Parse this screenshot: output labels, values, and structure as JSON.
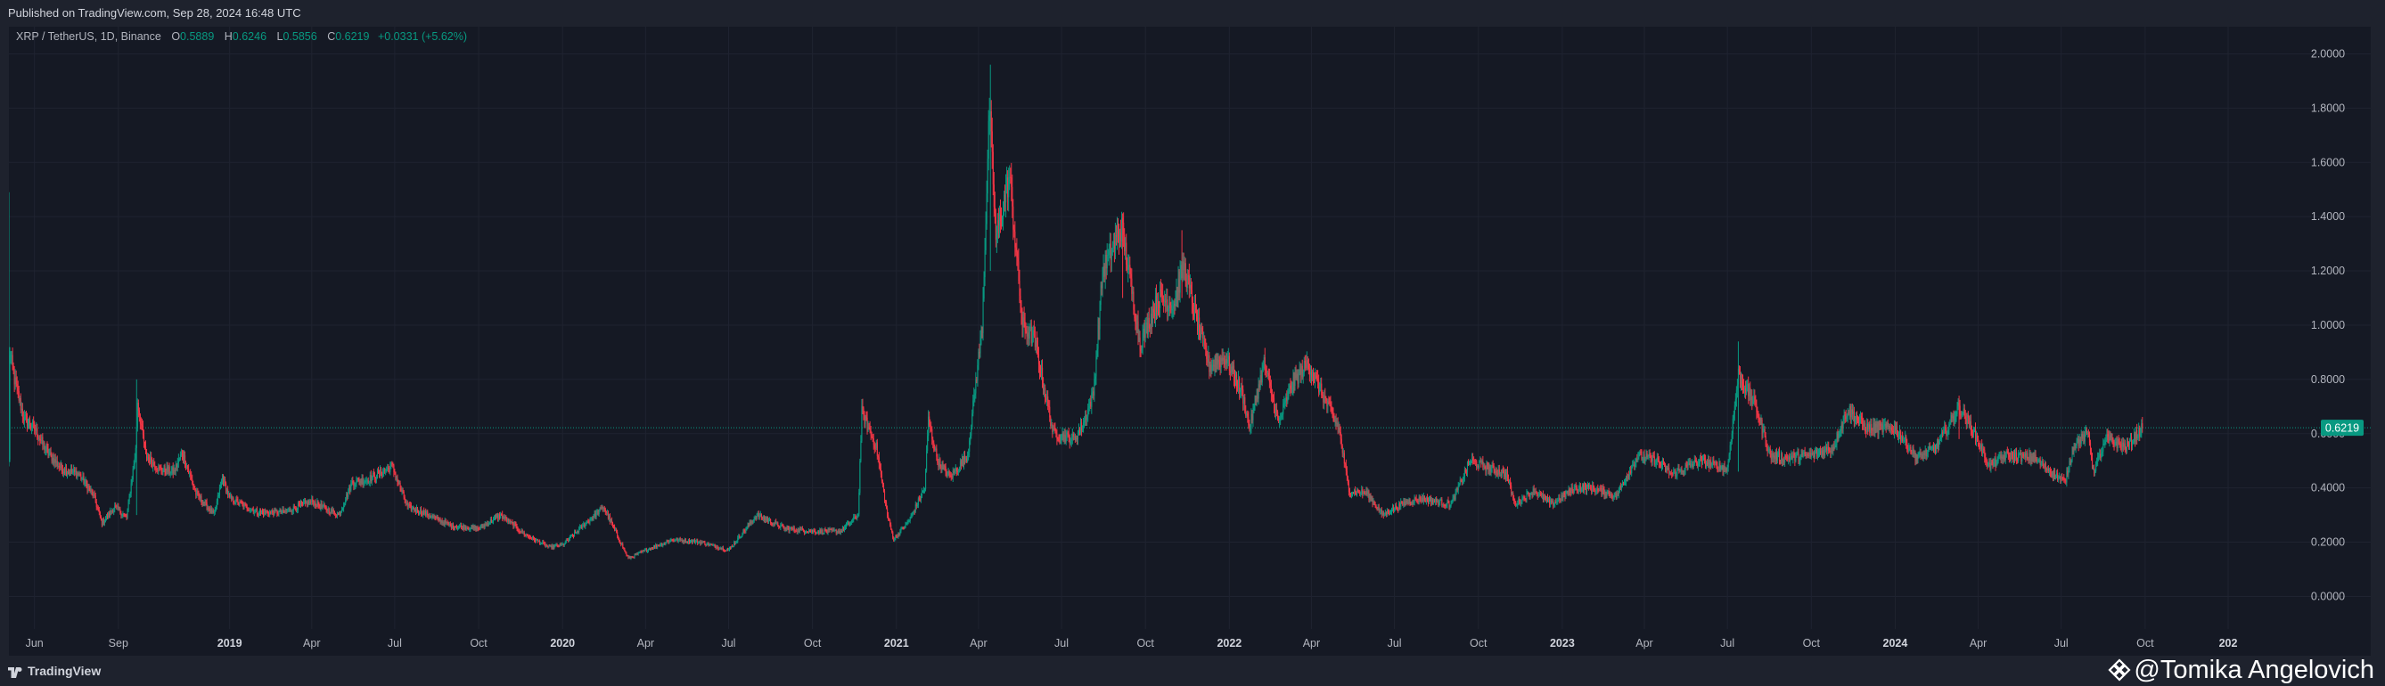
{
  "header": {
    "published": "Published on TradingView.com, Sep 28, 2024 16:48 UTC"
  },
  "legend": {
    "symbol": "XRP / TetherUS, 1D, Binance",
    "open_label": "O",
    "open": "0.5889",
    "high_label": "H",
    "high": "0.6246",
    "low_label": "L",
    "low": "0.5856",
    "close_label": "C",
    "close": "0.6219",
    "change": "+0.0331 (+5.62%)"
  },
  "footer": {
    "brand": "TradingView",
    "watermark": "@Tomika Angelovich"
  },
  "colors": {
    "up": "#089981",
    "down": "#f23645",
    "background": "#151924",
    "frame": "#1e222d",
    "grid": "#1f2330",
    "price_tag": "#089981"
  },
  "chart_data": {
    "type": "candlestick",
    "title": "XRP / TetherUS, 1D, Binance",
    "interval": "1D",
    "grid": true,
    "y_axis_position": "right",
    "ylim": [
      -0.12,
      2.1
    ],
    "y_ticks": [
      0.0,
      0.2,
      0.4,
      0.6,
      0.8,
      1.0,
      1.2,
      1.4,
      1.6,
      1.8,
      2.0
    ],
    "y_tick_labels": [
      "0.0000",
      "0.2000",
      "0.4000",
      "0.6000",
      "0.8000",
      "1.0000",
      "1.2000",
      "1.4000",
      "1.6000",
      "1.8000",
      "2.0000"
    ],
    "x_start": "2018-05-04",
    "x_end": "2024-12-31",
    "x_ticks": [
      {
        "date": "2018-06-01",
        "label": "Jun",
        "major": false
      },
      {
        "date": "2018-09-01",
        "label": "Sep",
        "major": false
      },
      {
        "date": "2019-01-01",
        "label": "2019",
        "major": true
      },
      {
        "date": "2019-04-01",
        "label": "Apr",
        "major": false
      },
      {
        "date": "2019-07-01",
        "label": "Jul",
        "major": false
      },
      {
        "date": "2019-10-01",
        "label": "Oct",
        "major": false
      },
      {
        "date": "2020-01-01",
        "label": "2020",
        "major": true
      },
      {
        "date": "2020-04-01",
        "label": "Apr",
        "major": false
      },
      {
        "date": "2020-07-01",
        "label": "Jul",
        "major": false
      },
      {
        "date": "2020-10-01",
        "label": "Oct",
        "major": false
      },
      {
        "date": "2021-01-01",
        "label": "2021",
        "major": true
      },
      {
        "date": "2021-04-01",
        "label": "Apr",
        "major": false
      },
      {
        "date": "2021-07-01",
        "label": "Jul",
        "major": false
      },
      {
        "date": "2021-10-01",
        "label": "Oct",
        "major": false
      },
      {
        "date": "2022-01-01",
        "label": "2022",
        "major": true
      },
      {
        "date": "2022-04-01",
        "label": "Apr",
        "major": false
      },
      {
        "date": "2022-07-01",
        "label": "Jul",
        "major": false
      },
      {
        "date": "2022-10-01",
        "label": "Oct",
        "major": false
      },
      {
        "date": "2023-01-01",
        "label": "2023",
        "major": true
      },
      {
        "date": "2023-04-01",
        "label": "Apr",
        "major": false
      },
      {
        "date": "2023-07-01",
        "label": "Jul",
        "major": false
      },
      {
        "date": "2023-10-01",
        "label": "Oct",
        "major": false
      },
      {
        "date": "2024-01-01",
        "label": "2024",
        "major": true
      },
      {
        "date": "2024-04-01",
        "label": "Apr",
        "major": false
      },
      {
        "date": "2024-07-01",
        "label": "Jul",
        "major": false
      },
      {
        "date": "2024-10-01",
        "label": "Oct",
        "major": false
      },
      {
        "date": "2024-12-31",
        "label": "202",
        "major": true
      }
    ],
    "last_price": 0.6219,
    "last_price_label": "0.6219",
    "close_path": [
      [
        "2018-05-04",
        0.5
      ],
      [
        "2018-05-05",
        0.9
      ],
      [
        "2018-05-10",
        0.8
      ],
      [
        "2018-05-20",
        0.66
      ],
      [
        "2018-06-01",
        0.62
      ],
      [
        "2018-06-15",
        0.53
      ],
      [
        "2018-07-01",
        0.47
      ],
      [
        "2018-07-20",
        0.45
      ],
      [
        "2018-08-05",
        0.37
      ],
      [
        "2018-08-14",
        0.27
      ],
      [
        "2018-08-28",
        0.33
      ],
      [
        "2018-09-10",
        0.29
      ],
      [
        "2018-09-20",
        0.54
      ],
      [
        "2018-09-22",
        0.72
      ],
      [
        "2018-10-01",
        0.52
      ],
      [
        "2018-10-15",
        0.47
      ],
      [
        "2018-11-01",
        0.46
      ],
      [
        "2018-11-10",
        0.53
      ],
      [
        "2018-11-25",
        0.38
      ],
      [
        "2018-12-15",
        0.3
      ],
      [
        "2018-12-24",
        0.44
      ],
      [
        "2019-01-01",
        0.36
      ],
      [
        "2019-02-01",
        0.31
      ],
      [
        "2019-03-01",
        0.31
      ],
      [
        "2019-04-01",
        0.35
      ],
      [
        "2019-05-01",
        0.3
      ],
      [
        "2019-05-15",
        0.42
      ],
      [
        "2019-06-01",
        0.43
      ],
      [
        "2019-06-28",
        0.48
      ],
      [
        "2019-07-15",
        0.33
      ],
      [
        "2019-08-01",
        0.31
      ],
      [
        "2019-09-01",
        0.26
      ],
      [
        "2019-10-01",
        0.25
      ],
      [
        "2019-10-25",
        0.3
      ],
      [
        "2019-11-20",
        0.23
      ],
      [
        "2019-12-18",
        0.18
      ],
      [
        "2020-01-01",
        0.19
      ],
      [
        "2020-02-15",
        0.33
      ],
      [
        "2020-03-13",
        0.14
      ],
      [
        "2020-04-01",
        0.17
      ],
      [
        "2020-05-01",
        0.21
      ],
      [
        "2020-06-01",
        0.2
      ],
      [
        "2020-07-01",
        0.17
      ],
      [
        "2020-08-01",
        0.3
      ],
      [
        "2020-09-01",
        0.25
      ],
      [
        "2020-10-01",
        0.24
      ],
      [
        "2020-11-01",
        0.24
      ],
      [
        "2020-11-20",
        0.3
      ],
      [
        "2020-11-24",
        0.68
      ],
      [
        "2020-12-10",
        0.55
      ],
      [
        "2020-12-22",
        0.3
      ],
      [
        "2020-12-29",
        0.21
      ],
      [
        "2021-01-15",
        0.28
      ],
      [
        "2021-02-01",
        0.4
      ],
      [
        "2021-02-05",
        0.65
      ],
      [
        "2021-02-15",
        0.5
      ],
      [
        "2021-03-01",
        0.44
      ],
      [
        "2021-03-20",
        0.52
      ],
      [
        "2021-04-05",
        1.0
      ],
      [
        "2021-04-13",
        1.8
      ],
      [
        "2021-04-20",
        1.32
      ],
      [
        "2021-05-05",
        1.55
      ],
      [
        "2021-05-19",
        1.0
      ],
      [
        "2021-06-01",
        0.95
      ],
      [
        "2021-06-22",
        0.6
      ],
      [
        "2021-07-15",
        0.58
      ],
      [
        "2021-07-25",
        0.64
      ],
      [
        "2021-08-05",
        0.75
      ],
      [
        "2021-08-15",
        1.2
      ],
      [
        "2021-09-05",
        1.36
      ],
      [
        "2021-09-25",
        0.93
      ],
      [
        "2021-10-15",
        1.1
      ],
      [
        "2021-11-01",
        1.08
      ],
      [
        "2021-11-12",
        1.22
      ],
      [
        "2021-11-25",
        1.03
      ],
      [
        "2021-12-10",
        0.85
      ],
      [
        "2021-12-28",
        0.88
      ],
      [
        "2022-01-15",
        0.75
      ],
      [
        "2022-01-23",
        0.62
      ],
      [
        "2022-02-08",
        0.86
      ],
      [
        "2022-02-24",
        0.64
      ],
      [
        "2022-03-10",
        0.78
      ],
      [
        "2022-03-28",
        0.86
      ],
      [
        "2022-04-15",
        0.73
      ],
      [
        "2022-05-01",
        0.62
      ],
      [
        "2022-05-12",
        0.39
      ],
      [
        "2022-06-01",
        0.38
      ],
      [
        "2022-06-18",
        0.3
      ],
      [
        "2022-07-15",
        0.35
      ],
      [
        "2022-08-01",
        0.36
      ],
      [
        "2022-09-01",
        0.34
      ],
      [
        "2022-09-22",
        0.5
      ],
      [
        "2022-10-15",
        0.47
      ],
      [
        "2022-11-01",
        0.45
      ],
      [
        "2022-11-10",
        0.34
      ],
      [
        "2022-12-01",
        0.39
      ],
      [
        "2022-12-20",
        0.34
      ],
      [
        "2023-01-15",
        0.4
      ],
      [
        "2023-02-01",
        0.4
      ],
      [
        "2023-03-01",
        0.37
      ],
      [
        "2023-03-25",
        0.52
      ],
      [
        "2023-04-15",
        0.5
      ],
      [
        "2023-05-01",
        0.45
      ],
      [
        "2023-06-01",
        0.5
      ],
      [
        "2023-07-01",
        0.47
      ],
      [
        "2023-07-13",
        0.82
      ],
      [
        "2023-08-01",
        0.7
      ],
      [
        "2023-08-17",
        0.52
      ],
      [
        "2023-09-01",
        0.51
      ],
      [
        "2023-10-01",
        0.52
      ],
      [
        "2023-10-25",
        0.55
      ],
      [
        "2023-11-10",
        0.69
      ],
      [
        "2023-12-01",
        0.62
      ],
      [
        "2024-01-01",
        0.62
      ],
      [
        "2024-01-25",
        0.51
      ],
      [
        "2024-02-15",
        0.55
      ],
      [
        "2024-03-11",
        0.7
      ],
      [
        "2024-03-25",
        0.62
      ],
      [
        "2024-04-13",
        0.48
      ],
      [
        "2024-05-01",
        0.52
      ],
      [
        "2024-06-01",
        0.51
      ],
      [
        "2024-07-05",
        0.42
      ],
      [
        "2024-07-15",
        0.56
      ],
      [
        "2024-07-31",
        0.6
      ],
      [
        "2024-08-05",
        0.46
      ],
      [
        "2024-08-20",
        0.58
      ],
      [
        "2024-09-10",
        0.55
      ],
      [
        "2024-09-28",
        0.6219
      ]
    ],
    "spikes": [
      {
        "date": "2018-05-04",
        "high": 1.49,
        "low": 0.5
      },
      {
        "date": "2018-09-21",
        "high": 0.8,
        "low": 0.3
      },
      {
        "date": "2021-04-14",
        "high": 1.96,
        "low": 1.2
      },
      {
        "date": "2021-09-06",
        "high": 1.41,
        "low": 1.1
      },
      {
        "date": "2021-11-10",
        "high": 1.35,
        "low": 1.1
      },
      {
        "date": "2023-07-13",
        "high": 0.94,
        "low": 0.46
      },
      {
        "date": "2024-03-11",
        "high": 0.74,
        "low": 0.58
      }
    ]
  }
}
